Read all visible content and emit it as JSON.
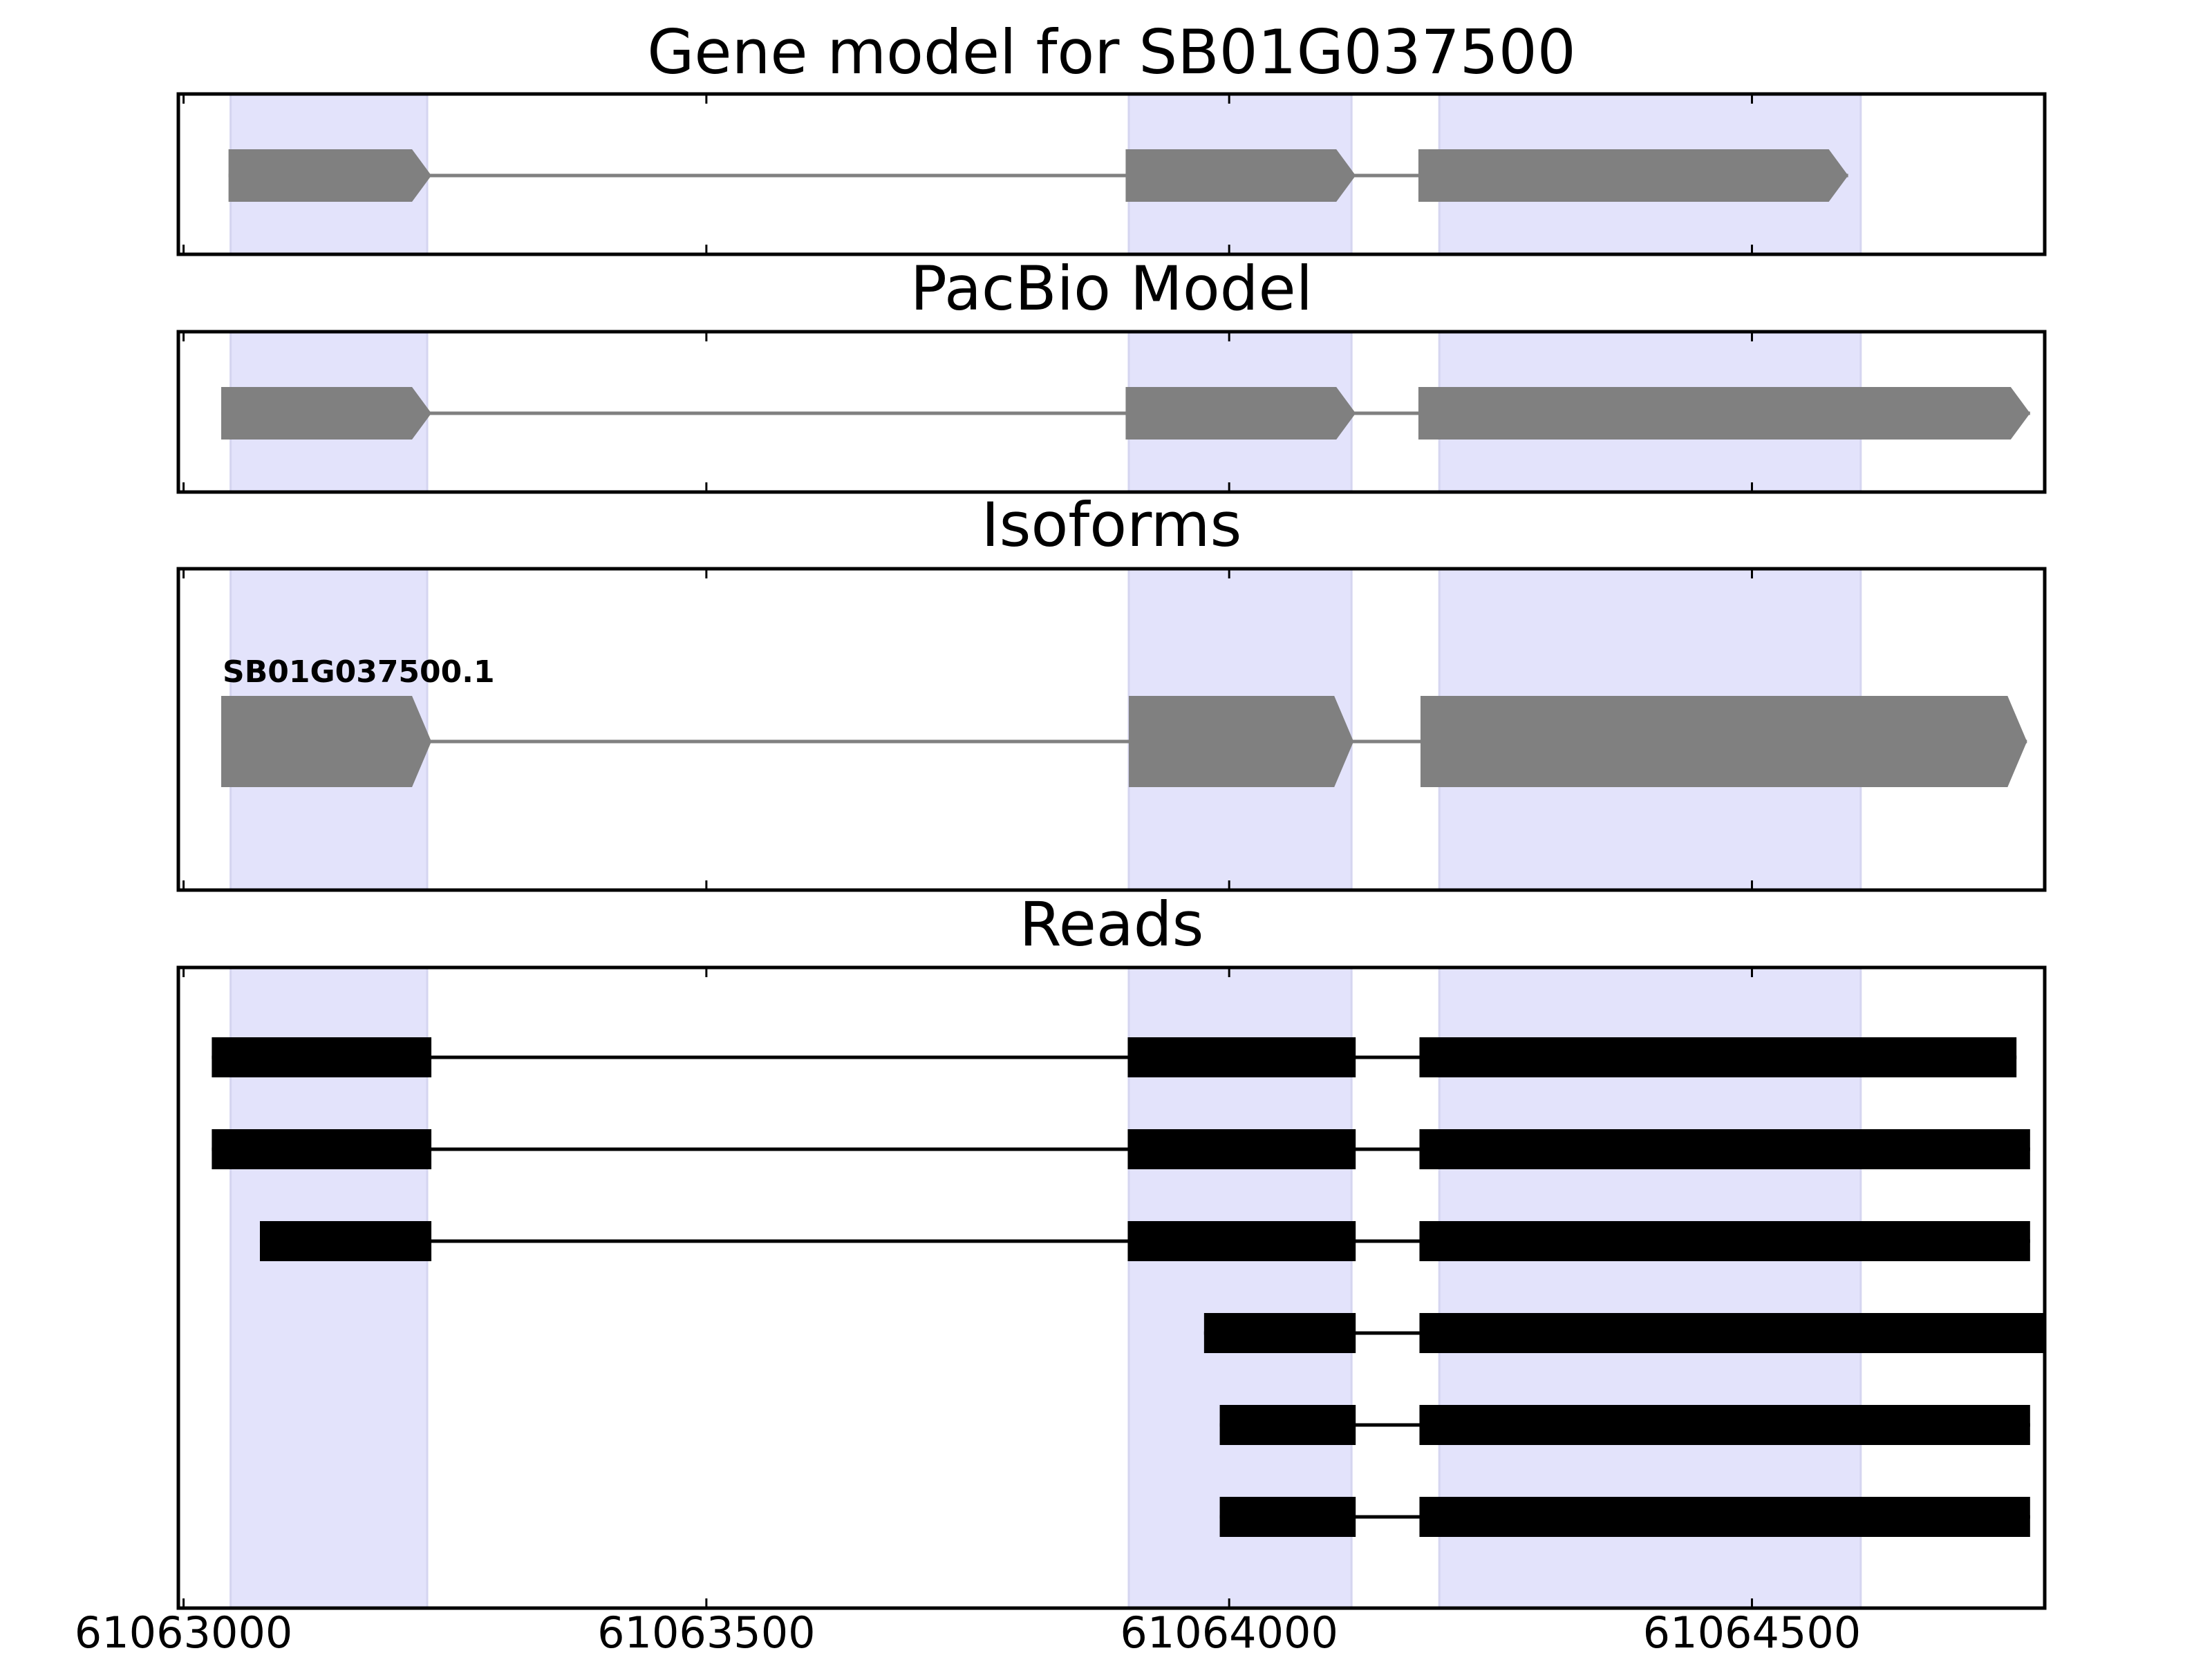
{
  "chart_data": {
    "type": "gene-structure",
    "x_unit": "genomic position (bp)",
    "xlim": [
      61062995,
      61064780
    ],
    "x_ticks": [
      61063000,
      61063500,
      61064000,
      61064500
    ],
    "x_tick_labels": [
      "61063000",
      "61063500",
      "61064000",
      "61064500"
    ],
    "highlight_regions": [
      [
        61063045,
        61063233
      ],
      [
        61063904,
        61064117
      ],
      [
        61064201,
        61064604
      ]
    ],
    "colors": {
      "highlight": "#e3e3fb",
      "highlight_edge": "#d5d5f0",
      "gene_model": "#808080",
      "read": "#000000",
      "frame": "#000000"
    },
    "panels": [
      {
        "title": "Gene model for SB01G037500",
        "kind": "model",
        "tracks": [
          {
            "exons": [
              [
                61063043,
                61063237
              ],
              [
                61063901,
                61064121
              ],
              [
                61064181,
                61064592
              ]
            ]
          }
        ]
      },
      {
        "title": "PacBio Model",
        "kind": "model",
        "tracks": [
          {
            "exons": [
              [
                61063036,
                61063237
              ],
              [
                61063901,
                61064121
              ],
              [
                61064181,
                61064766
              ]
            ]
          }
        ]
      },
      {
        "title": "Isoforms",
        "kind": "isoform",
        "tracks": [
          {
            "label": "SB01G037500.1",
            "exons": [
              [
                61063036,
                61063237
              ],
              [
                61063904,
                61064119
              ],
              [
                61064183,
                61064763
              ]
            ]
          }
        ]
      },
      {
        "title": "Reads",
        "kind": "reads",
        "tracks": [
          {
            "exons": [
              [
                61063027,
                61063237
              ],
              [
                61063903,
                61064121
              ],
              [
                61064182,
                61064753
              ]
            ]
          },
          {
            "exons": [
              [
                61063027,
                61063237
              ],
              [
                61063903,
                61064121
              ],
              [
                61064182,
                61064766
              ]
            ]
          },
          {
            "exons": [
              [
                61063073,
                61063237
              ],
              [
                61063903,
                61064121
              ],
              [
                61064182,
                61064766
              ]
            ]
          },
          {
            "exons": [
              [
                61063976,
                61064121
              ],
              [
                61064182,
                61064780
              ]
            ]
          },
          {
            "exons": [
              [
                61063991,
                61064121
              ],
              [
                61064182,
                61064766
              ]
            ]
          },
          {
            "exons": [
              [
                61063991,
                61064121
              ],
              [
                61064182,
                61064766
              ]
            ]
          }
        ]
      }
    ]
  }
}
